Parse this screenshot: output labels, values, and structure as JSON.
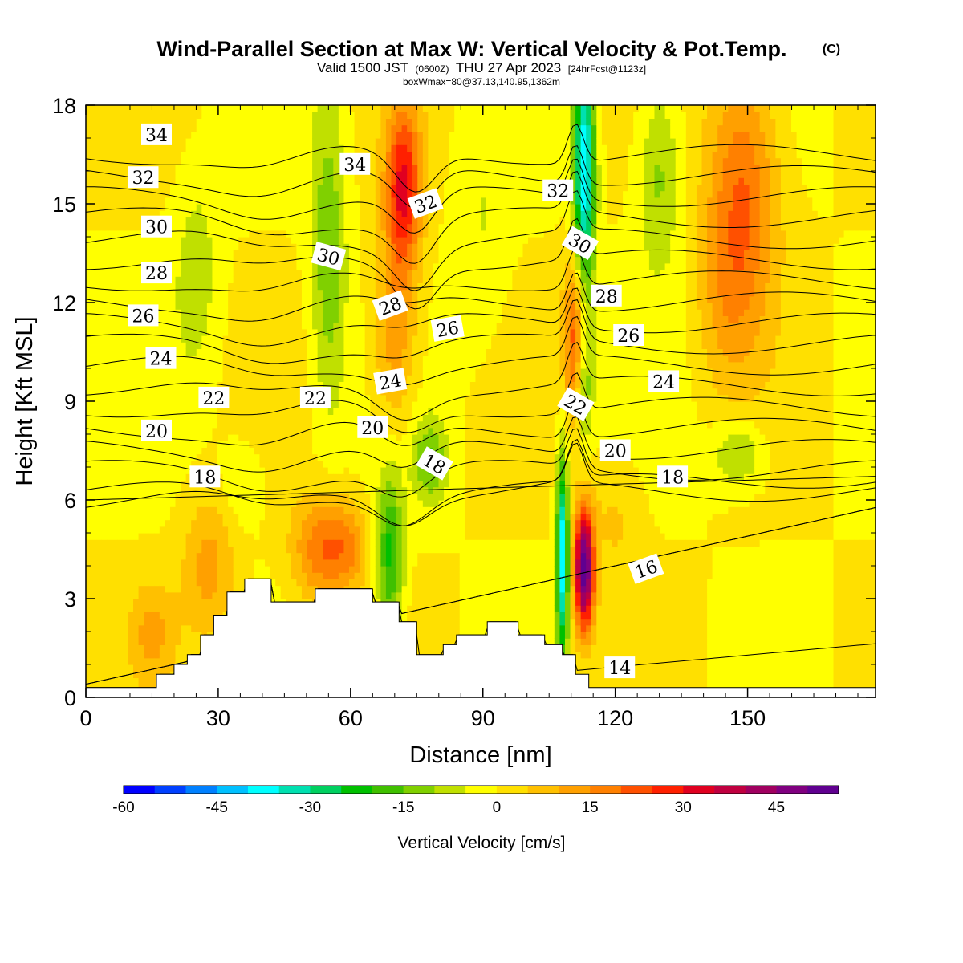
{
  "titles": {
    "main": "Wind-Parallel Section at Max W: Vertical Velocity & Pot.Temp.",
    "main_mark": "(C)",
    "valid_prefix": "Valid 1500 JST",
    "valid_utc": "(0600Z)",
    "valid_date": "THU 27 Apr 2023",
    "forecast": "[24hrFcst@1123z]",
    "box_info": "boxWmax=80@37.13,140.95,1362m"
  },
  "chart_data": {
    "type": "heatmap",
    "xlabel": "Distance [nm]",
    "ylabel": "Height [Kft MSL]",
    "xlim": [
      0,
      179
    ],
    "ylim": [
      0,
      18
    ],
    "x_ticks": [
      "0",
      "30",
      "60",
      "90",
      "120",
      "150"
    ],
    "y_ticks": [
      "0",
      "3",
      "6",
      "9",
      "12",
      "15",
      "18"
    ],
    "colorbar": {
      "label": "Vertical Velocity [cm/s]",
      "ticks": [
        "-60",
        "-45",
        "-30",
        "-15",
        "0",
        "15",
        "30",
        "45"
      ],
      "range": [
        -60,
        55
      ],
      "step": 5,
      "colors": [
        "#0000ff",
        "#0040ff",
        "#0080ff",
        "#00c0ff",
        "#00ffff",
        "#00e0b0",
        "#00d060",
        "#00c000",
        "#40c000",
        "#80d000",
        "#c0e000",
        "#ffff00",
        "#ffe000",
        "#ffc000",
        "#ffa000",
        "#ff8000",
        "#ff5000",
        "#ff2000",
        "#e00020",
        "#c00040",
        "#a00060",
        "#800080",
        "#600090"
      ]
    },
    "terrain_kft": [
      [
        0,
        0.3
      ],
      [
        16,
        0.3
      ],
      [
        16,
        0.7
      ],
      [
        20,
        0.7
      ],
      [
        20,
        1.0
      ],
      [
        23,
        1.0
      ],
      [
        23,
        1.3
      ],
      [
        26,
        1.3
      ],
      [
        26,
        1.9
      ],
      [
        29,
        1.9
      ],
      [
        29,
        2.5
      ],
      [
        32,
        2.5
      ],
      [
        32,
        3.2
      ],
      [
        36,
        3.2
      ],
      [
        36,
        3.6
      ],
      [
        42,
        3.6
      ],
      [
        42,
        2.9
      ],
      [
        52,
        2.9
      ],
      [
        52,
        3.3
      ],
      [
        65,
        3.3
      ],
      [
        65,
        2.9
      ],
      [
        71,
        2.9
      ],
      [
        71,
        2.3
      ],
      [
        75,
        2.3
      ],
      [
        75,
        1.3
      ],
      [
        81,
        1.3
      ],
      [
        81,
        1.6
      ],
      [
        84,
        1.6
      ],
      [
        84,
        1.9
      ],
      [
        91,
        1.9
      ],
      [
        91,
        2.3
      ],
      [
        98,
        2.3
      ],
      [
        98,
        1.9
      ],
      [
        104,
        1.9
      ],
      [
        104,
        1.6
      ],
      [
        108,
        1.6
      ],
      [
        108,
        1.3
      ],
      [
        111,
        1.3
      ],
      [
        111,
        0.7
      ],
      [
        114,
        0.7
      ],
      [
        114,
        0.3
      ],
      [
        179,
        0.3
      ]
    ],
    "w_features": [
      {
        "x": 72,
        "y": 15.5,
        "sx": 4,
        "sy": 2.5,
        "w": 30
      },
      {
        "x": 70,
        "y": 11,
        "sx": 5,
        "sy": 3,
        "w": 15
      },
      {
        "x": 54,
        "y": 4.5,
        "sx": 7,
        "sy": 1.6,
        "w": 20
      },
      {
        "x": 60,
        "y": 4.6,
        "sx": 4,
        "sy": 1.2,
        "w": 8
      },
      {
        "x": 28,
        "y": 4,
        "sx": 6,
        "sy": 2.2,
        "w": 12
      },
      {
        "x": 15,
        "y": 2,
        "sx": 5,
        "sy": 1.5,
        "w": 10
      },
      {
        "x": 113,
        "y": 3.9,
        "sx": 2.2,
        "sy": 1.8,
        "w": 55
      },
      {
        "x": 111,
        "y": 11,
        "sx": 2.5,
        "sy": 2.5,
        "w": 25
      },
      {
        "x": 149,
        "y": 15.5,
        "sx": 8,
        "sy": 4,
        "w": 20
      },
      {
        "x": 145,
        "y": 12,
        "sx": 7,
        "sy": 3,
        "w": 8
      },
      {
        "x": 120,
        "y": 5.5,
        "sx": 6,
        "sy": 2.0,
        "w": 6
      },
      {
        "x": 108,
        "y": 4.3,
        "sx": 1.4,
        "sy": 3,
        "w": -40
      },
      {
        "x": 113,
        "y": 16,
        "sx": 2.4,
        "sy": 4,
        "w": -40
      },
      {
        "x": 113,
        "y": 9.5,
        "sx": 2,
        "sy": 2,
        "w": -15
      },
      {
        "x": 69,
        "y": 4.3,
        "sx": 3,
        "sy": 2.5,
        "w": -22
      },
      {
        "x": 78,
        "y": 7.2,
        "sx": 4,
        "sy": 1.3,
        "w": -15
      },
      {
        "x": 55,
        "y": 13.5,
        "sx": 4,
        "sy": 5,
        "w": -14
      },
      {
        "x": 25,
        "y": 13,
        "sx": 5,
        "sy": 3,
        "w": -8
      },
      {
        "x": 130,
        "y": 16,
        "sx": 5,
        "sy": 3,
        "w": -12
      },
      {
        "x": 148,
        "y": 7.4,
        "sx": 6,
        "sy": 1.0,
        "w": -12
      },
      {
        "x": 35,
        "y": 6.5,
        "sx": 5,
        "sy": 1.3,
        "w": -6
      },
      {
        "x": 90,
        "y": 14,
        "sx": 6,
        "sy": 3.5,
        "w": -5
      }
    ],
    "theta_contours": [
      {
        "level": 14,
        "label": "14",
        "label_x": 121,
        "labels": true
      },
      {
        "level": 16,
        "label": "16",
        "label_x": 127,
        "labels": true
      },
      {
        "level": 18,
        "label": "18",
        "label_x": 134,
        "labels": true
      },
      {
        "level": 20,
        "label": "20",
        "label_x": 66,
        "labels": true
      },
      {
        "level": 22,
        "label": "22",
        "label_x": 52,
        "labels": true
      },
      {
        "level": 24,
        "label": "24",
        "label_x": 70,
        "labels": true
      },
      {
        "level": 26,
        "label": "26",
        "label_x": 83,
        "labels": true
      },
      {
        "level": 28,
        "label": "28",
        "label_x": 17,
        "labels": true
      },
      {
        "level": 30,
        "label": "30",
        "label_x": 17,
        "labels": true
      },
      {
        "level": 32,
        "label": "32",
        "label_x": 13,
        "labels": true
      },
      {
        "level": 34,
        "label": "34",
        "label_x": 16,
        "labels": true
      }
    ],
    "theta_labels": [
      {
        "text": "34",
        "x": 16,
        "y": 17.1,
        "rot": 0
      },
      {
        "text": "32",
        "x": 13,
        "y": 15.8,
        "rot": 0
      },
      {
        "text": "30",
        "x": 16,
        "y": 14.3,
        "rot": 0
      },
      {
        "text": "28",
        "x": 16,
        "y": 12.9,
        "rot": 0
      },
      {
        "text": "26",
        "x": 13,
        "y": 11.6,
        "rot": 0
      },
      {
        "text": "24",
        "x": 17,
        "y": 10.3,
        "rot": 0
      },
      {
        "text": "22",
        "x": 29,
        "y": 9.1,
        "rot": 0
      },
      {
        "text": "20",
        "x": 16,
        "y": 8.1,
        "rot": 0
      },
      {
        "text": "18",
        "x": 27,
        "y": 6.7,
        "rot": 0
      },
      {
        "text": "34",
        "x": 61,
        "y": 16.2,
        "rot": 0
      },
      {
        "text": "32",
        "x": 77,
        "y": 15.0,
        "rot": -20
      },
      {
        "text": "30",
        "x": 55,
        "y": 13.4,
        "rot": 15
      },
      {
        "text": "28",
        "x": 69,
        "y": 11.9,
        "rot": -20
      },
      {
        "text": "26",
        "x": 82,
        "y": 11.2,
        "rot": -10
      },
      {
        "text": "24",
        "x": 69,
        "y": 9.6,
        "rot": -10
      },
      {
        "text": "22",
        "x": 52,
        "y": 9.1,
        "rot": 0
      },
      {
        "text": "20",
        "x": 65,
        "y": 8.2,
        "rot": 0
      },
      {
        "text": "18",
        "x": 79,
        "y": 7.1,
        "rot": 30
      },
      {
        "text": "32",
        "x": 107,
        "y": 15.4,
        "rot": 0
      },
      {
        "text": "30",
        "x": 112,
        "y": 13.8,
        "rot": 30
      },
      {
        "text": "28",
        "x": 118,
        "y": 12.2,
        "rot": 0
      },
      {
        "text": "26",
        "x": 123,
        "y": 11.0,
        "rot": 0
      },
      {
        "text": "24",
        "x": 131,
        "y": 9.6,
        "rot": 0
      },
      {
        "text": "22",
        "x": 111,
        "y": 8.9,
        "rot": 30
      },
      {
        "text": "20",
        "x": 120,
        "y": 7.5,
        "rot": 0
      },
      {
        "text": "18",
        "x": 133,
        "y": 6.7,
        "rot": 0
      },
      {
        "text": "16",
        "x": 127,
        "y": 3.9,
        "rot": -20
      },
      {
        "text": "14",
        "x": 121,
        "y": 0.9,
        "rot": 0
      }
    ]
  }
}
